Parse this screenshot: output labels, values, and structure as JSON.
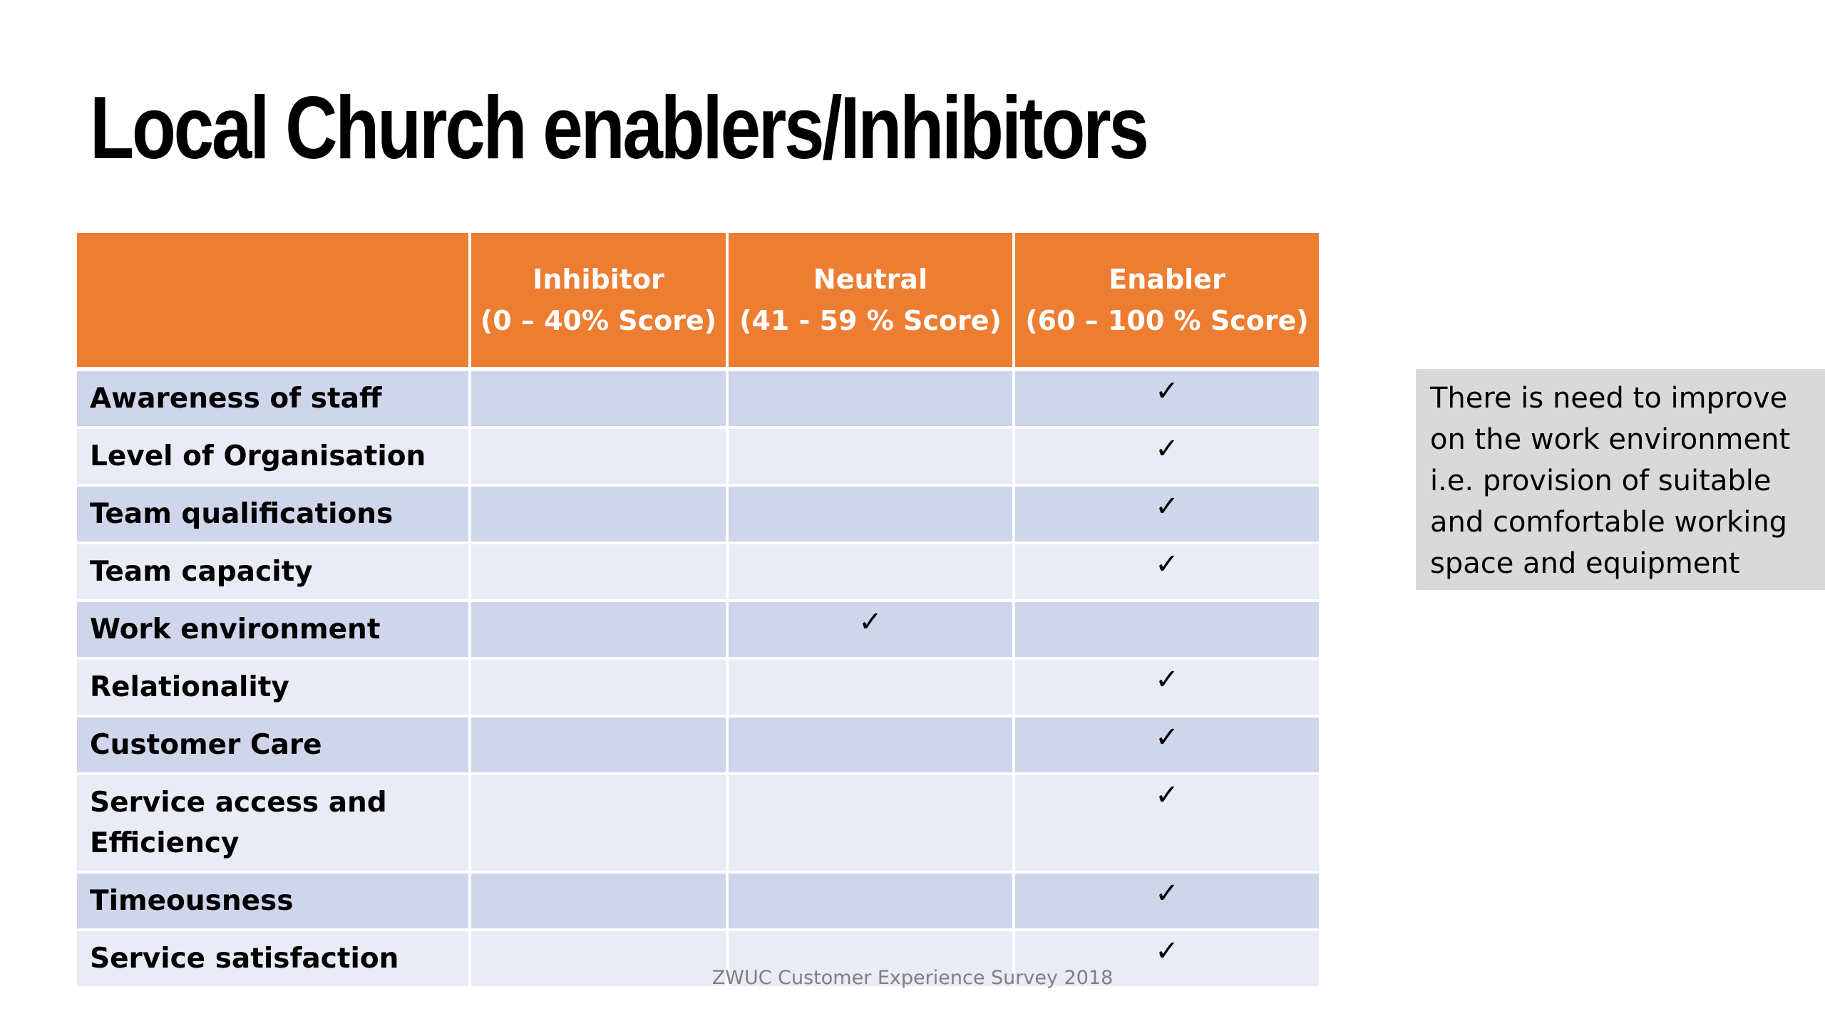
{
  "title": "Local Church enablers/Inhibitors",
  "table": {
    "headers": [
      {
        "line1": "",
        "line2": ""
      },
      {
        "line1": "Inhibitor",
        "line2": "(0 – 40% Score)"
      },
      {
        "line1": "Neutral",
        "line2": "(41 - 59 % Score)"
      },
      {
        "line1": "Enabler",
        "line2": "(60 – 100 % Score)"
      }
    ],
    "check_symbol": "✓",
    "rows": [
      {
        "label": "Awareness of staff",
        "inhibitor": "",
        "neutral": "",
        "enabler": "✓"
      },
      {
        "label": "Level of Organisation",
        "inhibitor": "",
        "neutral": "",
        "enabler": "✓"
      },
      {
        "label": "Team qualifications",
        "inhibitor": "",
        "neutral": "",
        "enabler": "✓"
      },
      {
        "label": "Team capacity",
        "inhibitor": "",
        "neutral": "",
        "enabler": "✓"
      },
      {
        "label": "Work environment",
        "inhibitor": "",
        "neutral": "✓",
        "enabler": ""
      },
      {
        "label": "Relationality",
        "inhibitor": "",
        "neutral": "",
        "enabler": "✓"
      },
      {
        "label": "Customer Care",
        "inhibitor": "",
        "neutral": "",
        "enabler": "✓"
      },
      {
        "label": "Service access and Efficiency",
        "inhibitor": "",
        "neutral": "",
        "enabler": "✓"
      },
      {
        "label": "Timeousness",
        "inhibitor": "",
        "neutral": "",
        "enabler": "✓"
      },
      {
        "label": "Service satisfaction",
        "inhibitor": "",
        "neutral": "",
        "enabler": "✓"
      }
    ]
  },
  "note": "There is need to improve on the work environment i.e. provision of suitable and comfortable working space and equipment",
  "footer": "ZWUC Customer Experience Survey 2018",
  "colors": {
    "header_orange": "#ED7D31",
    "row_dark": "#CFD5EA",
    "row_light": "#E9EBF5",
    "note_bg": "#D9D9D9",
    "footer_text": "#808080"
  }
}
